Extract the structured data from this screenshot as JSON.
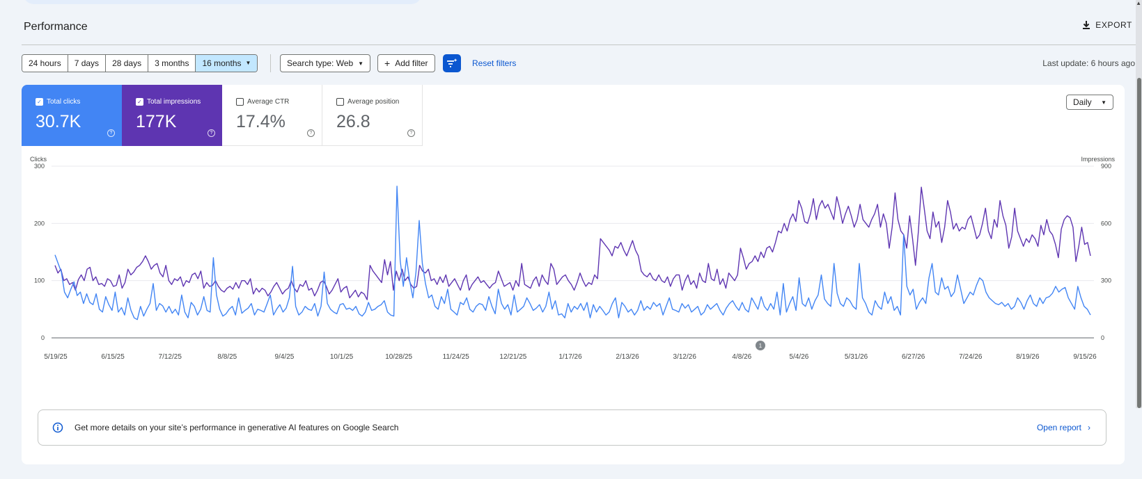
{
  "page": {
    "title": "Performance",
    "export_label": "EXPORT"
  },
  "toolbar": {
    "ranges": [
      "24 hours",
      "7 days",
      "28 days",
      "3 months",
      "16 months"
    ],
    "selected_range": "16 months",
    "search_type": "Search type: Web",
    "add_filter": "Add filter",
    "reset_filters": "Reset filters",
    "last_update": "Last update: 6 hours ago",
    "accent_color": "#0b57d0"
  },
  "metrics": [
    {
      "label": "Total clicks",
      "value": "30.7K",
      "checked": true,
      "color": "#4285f4"
    },
    {
      "label": "Total impressions",
      "value": "177K",
      "checked": true,
      "color": "#5e35b1"
    },
    {
      "label": "Average CTR",
      "value": "17.4%",
      "checked": false
    },
    {
      "label": "Average position",
      "value": "26.8",
      "checked": false
    }
  ],
  "granularity": "Daily",
  "annotation_badge": "1",
  "chart_data": {
    "type": "line",
    "x_tick_labels": [
      "5/19/25",
      "6/15/25",
      "7/12/25",
      "8/8/25",
      "9/4/25",
      "10/1/25",
      "10/28/25",
      "11/24/25",
      "12/21/25",
      "1/17/26",
      "2/13/26",
      "3/12/26",
      "4/8/26",
      "5/4/26",
      "5/31/26",
      "6/27/26",
      "7/24/26",
      "8/19/26",
      "9/15/26"
    ],
    "x_range": [
      "5/19/25",
      "9/15/26"
    ],
    "y_left": {
      "label": "Clicks",
      "ticks": [
        0,
        100,
        200,
        300
      ],
      "range": [
        0,
        300
      ]
    },
    "y_right": {
      "label": "Impressions",
      "ticks": [
        0,
        300,
        600,
        900
      ],
      "range": [
        0,
        900
      ]
    },
    "grid": true,
    "series": [
      {
        "name": "Total clicks",
        "axis": "left",
        "color": "#4285f4",
        "values": [
          145,
          130,
          115,
          80,
          70,
          85,
          98,
          74,
          80,
          60,
          77,
          62,
          58,
          77,
          50,
          45,
          72,
          58,
          48,
          80,
          45,
          53,
          40,
          70,
          48,
          35,
          32,
          55,
          38,
          50,
          60,
          95,
          48,
          60,
          56,
          45,
          55,
          43,
          50,
          40,
          75,
          45,
          35,
          62,
          55,
          40,
          50,
          72,
          48,
          45,
          140,
          75,
          50,
          38,
          42,
          50,
          55,
          40,
          70,
          43,
          48,
          52,
          60,
          40,
          50,
          48,
          45,
          60,
          75,
          40,
          50,
          58,
          45,
          52,
          70,
          125,
          55,
          40,
          45,
          55,
          50,
          48,
          60,
          38,
          55,
          115,
          60,
          50,
          45,
          42,
          58,
          60,
          50,
          52,
          48,
          55,
          42,
          38,
          45,
          62,
          48,
          50,
          55,
          58,
          65,
          45,
          40,
          38,
          265,
          135,
          90,
          140,
          100,
          70,
          115,
          205,
          130,
          95,
          70,
          75,
          55,
          50,
          72,
          60,
          85,
          50,
          45,
          40,
          62,
          58,
          70,
          50,
          45,
          55,
          60,
          58,
          48,
          72,
          55,
          42,
          85,
          60,
          50,
          58,
          40,
          75,
          45,
          50,
          55,
          70,
          60,
          48,
          52,
          58,
          45,
          55,
          80,
          50,
          65,
          40,
          42,
          35,
          60,
          45,
          55,
          50,
          60,
          48,
          62,
          35,
          58,
          45,
          55,
          48,
          40,
          45,
          60,
          70,
          35,
          62,
          55,
          45,
          50,
          40,
          48,
          65,
          48,
          55,
          50,
          62,
          55,
          60,
          40,
          55,
          70,
          50,
          48,
          45,
          60,
          52,
          58,
          45,
          50,
          55,
          40,
          45,
          58,
          50,
          55,
          60,
          48,
          40,
          52,
          60,
          65,
          55,
          48,
          62,
          50,
          45,
          70,
          60,
          50,
          72,
          55,
          48,
          60,
          50,
          80,
          40,
          95,
          45,
          60,
          72,
          48,
          105,
          60,
          55,
          70,
          50,
          65,
          75,
          110,
          68,
          60,
          55,
          130,
          78,
          60,
          55,
          70,
          65,
          55,
          50,
          130,
          70,
          60,
          45,
          40,
          65,
          55,
          50,
          80,
          60,
          72,
          48,
          55,
          40,
          180,
          90,
          75,
          85,
          50,
          62,
          70,
          60,
          105,
          130,
          80,
          75,
          105,
          85,
          90,
          72,
          80,
          110,
          85,
          60,
          70,
          80,
          75,
          92,
          105,
          100,
          80,
          70,
          65,
          60,
          58,
          62,
          55,
          60,
          50,
          55,
          70,
          62,
          50,
          65,
          75,
          60,
          55,
          70,
          60,
          70,
          72,
          78,
          90,
          80,
          85,
          88,
          70,
          60,
          50,
          90,
          70,
          55,
          50,
          40
        ]
      },
      {
        "name": "Total impressions",
        "axis": "right",
        "color": "#5e35b1",
        "values": [
          380,
          340,
          360,
          300,
          310,
          280,
          290,
          250,
          305,
          330,
          300,
          360,
          370,
          300,
          320,
          280,
          285,
          270,
          310,
          300,
          270,
          275,
          330,
          260,
          290,
          360,
          330,
          345,
          370,
          380,
          400,
          430,
          400,
          360,
          380,
          390,
          340,
          320,
          380,
          300,
          280,
          310,
          300,
          320,
          270,
          300,
          290,
          330,
          340,
          310,
          350,
          260,
          290,
          270,
          275,
          300,
          270,
          250,
          240,
          260,
          270,
          255,
          290,
          260,
          300,
          300,
          280,
          310,
          230,
          260,
          240,
          260,
          250,
          220,
          240,
          270,
          290,
          260,
          230,
          250,
          260,
          300,
          260,
          240,
          280,
          270,
          300,
          250,
          260,
          220,
          250,
          290,
          300,
          270,
          230,
          250,
          280,
          310,
          240,
          260,
          270,
          210,
          230,
          250,
          215,
          240,
          230,
          200,
          380,
          350,
          330,
          310,
          290,
          410,
          330,
          400,
          250,
          350,
          300,
          360,
          300,
          320,
          280,
          260,
          270,
          380,
          350,
          340,
          360,
          300,
          310,
          280,
          320,
          290,
          330,
          270,
          290,
          310,
          280,
          250,
          300,
          330,
          250,
          280,
          300,
          320,
          290,
          300,
          280,
          260,
          280,
          290,
          350,
          310,
          270,
          280,
          290,
          250,
          300,
          270,
          390,
          280,
          270,
          260,
          300,
          320,
          270,
          330,
          300,
          280,
          390,
          360,
          280,
          300,
          320,
          330,
          300,
          280,
          250,
          290,
          340,
          300,
          270,
          290,
          280,
          330,
          310,
          520,
          500,
          480,
          460,
          430,
          480,
          470,
          500,
          460,
          430,
          470,
          510,
          460,
          430,
          350,
          330,
          320,
          340,
          310,
          300,
          330,
          300,
          290,
          320,
          270,
          310,
          330,
          330,
          250,
          300,
          330,
          280,
          300,
          260,
          340,
          300,
          290,
          390,
          310,
          300,
          360,
          280,
          310,
          260,
          340,
          320,
          300,
          330,
          470,
          420,
          360,
          390,
          400,
          430,
          400,
          450,
          420,
          470,
          480,
          450,
          500,
          560,
          550,
          600,
          560,
          620,
          650,
          610,
          720,
          680,
          610,
          600,
          650,
          730,
          620,
          690,
          720,
          680,
          700,
          660,
          620,
          740,
          680,
          600,
          650,
          690,
          640,
          580,
          620,
          700,
          620,
          600,
          580,
          620,
          650,
          700,
          580,
          650,
          600,
          470,
          580,
          760,
          620,
          560,
          540,
          470,
          640,
          520,
          380,
          560,
          790,
          680,
          560,
          520,
          660,
          580,
          610,
          500,
          580,
          720,
          660,
          570,
          600,
          560,
          580,
          570,
          620,
          640,
          580,
          520,
          540,
          600,
          680,
          560,
          520,
          620,
          580,
          720,
          640,
          590,
          470,
          530,
          680,
          560,
          520,
          480,
          520,
          500,
          540,
          520,
          480,
          590,
          540,
          620,
          560,
          540,
          490,
          420,
          570,
          620,
          640,
          630,
          580,
          400,
          480,
          580,
          490,
          500,
          430
        ]
      }
    ]
  },
  "banner": {
    "text": "Get more details on your site’s performance in generative AI features on Google Search",
    "link": "Open report"
  }
}
